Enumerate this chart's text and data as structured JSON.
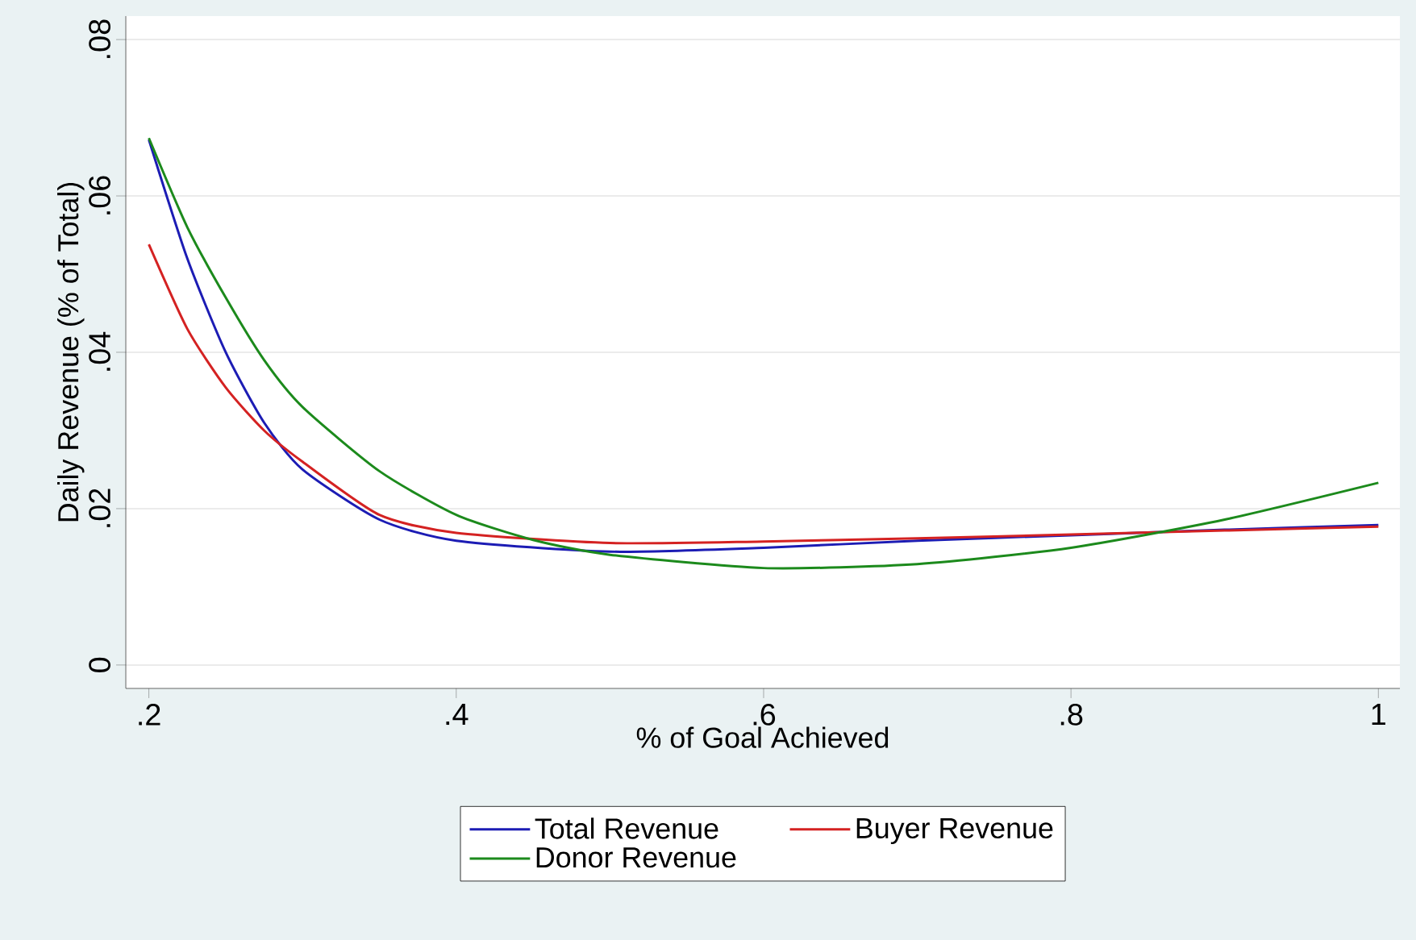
{
  "chart_data": {
    "type": "line",
    "xlabel": "% of Goal Achieved",
    "ylabel": "Daily Revenue (% of Total)",
    "xlim": [
      0.185,
      1.014
    ],
    "ylim": [
      -0.003,
      0.083
    ],
    "xticks": [
      {
        "value": 0.2,
        "label": ".2"
      },
      {
        "value": 0.4,
        "label": ".4"
      },
      {
        "value": 0.6,
        "label": ".6"
      },
      {
        "value": 0.8,
        "label": ".8"
      },
      1
    ],
    "yticks": [
      0,
      {
        "value": 0.02,
        "label": ".02"
      },
      {
        "value": 0.04,
        "label": ".04"
      },
      {
        "value": 0.06,
        "label": ".06"
      },
      {
        "value": 0.08,
        "label": ".08"
      }
    ],
    "grid": "y",
    "legend": "bottom",
    "series": [
      {
        "name": "Total Revenue",
        "color": "#1c1cb4",
        "x": [
          0.2,
          0.225,
          0.25,
          0.275,
          0.3,
          0.35,
          0.4,
          0.5,
          0.6,
          0.7,
          0.8,
          0.9,
          1.0
        ],
        "values": [
          0.0672,
          0.052,
          0.04,
          0.031,
          0.025,
          0.0186,
          0.0159,
          0.0145,
          0.015,
          0.0159,
          0.0166,
          0.0173,
          0.0179
        ]
      },
      {
        "name": "Buyer Revenue",
        "color": "#d42222",
        "x": [
          0.2,
          0.225,
          0.25,
          0.275,
          0.3,
          0.35,
          0.4,
          0.5,
          0.6,
          0.7,
          0.8,
          0.9,
          1.0
        ],
        "values": [
          0.0538,
          0.043,
          0.0355,
          0.03,
          0.026,
          0.0192,
          0.0169,
          0.0156,
          0.0158,
          0.0162,
          0.0167,
          0.0172,
          0.0177
        ]
      },
      {
        "name": "Donor Revenue",
        "color": "#1c8a1c",
        "x": [
          0.2,
          0.225,
          0.25,
          0.275,
          0.3,
          0.35,
          0.4,
          0.45,
          0.5,
          0.6,
          0.7,
          0.8,
          0.9,
          1.0
        ],
        "values": [
          0.0674,
          0.056,
          0.047,
          0.039,
          0.033,
          0.0248,
          0.0192,
          0.016,
          0.0141,
          0.0124,
          0.0129,
          0.015,
          0.0186,
          0.0233
        ]
      }
    ]
  }
}
